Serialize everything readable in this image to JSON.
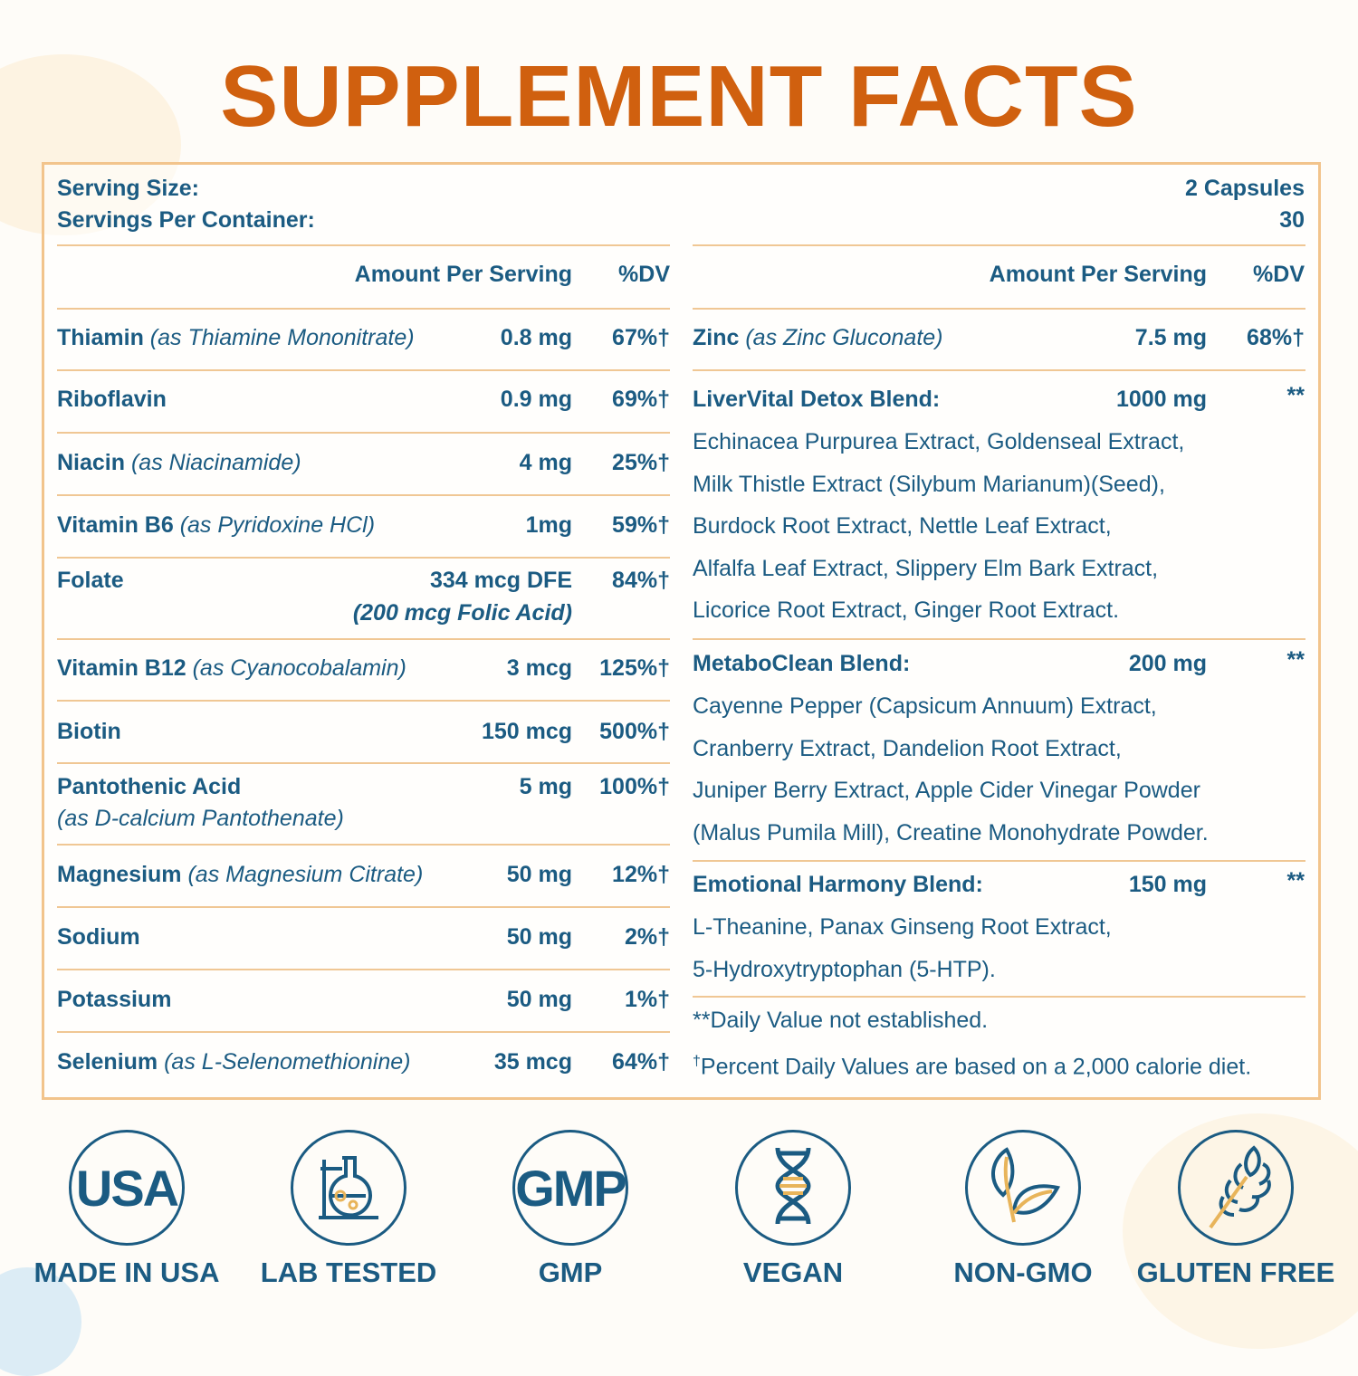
{
  "title": "SUPPLEMENT FACTS",
  "serving": {
    "size_label": "Serving Size:",
    "size_value": "2 Capsules",
    "per_container_label": "Servings Per Container:",
    "per_container_value": "30"
  },
  "headers": {
    "amount": "Amount Per Serving",
    "dv": "%DV"
  },
  "left_rows": [
    {
      "name": "Thiamin",
      "source": "(as Thiamine Mononitrate)",
      "amount": "0.8 mg",
      "dv": "67%†"
    },
    {
      "name": "Riboflavin",
      "source": "",
      "amount": "0.9 mg",
      "dv": "69%†"
    },
    {
      "name": "Niacin",
      "source": "(as Niacinamide)",
      "amount": "4 mg",
      "dv": "25%†"
    },
    {
      "name": "Vitamin B6",
      "source": "(as Pyridoxine HCl)",
      "amount": "1mg",
      "dv": "59%†"
    },
    {
      "name": "Folate",
      "source": "",
      "amount": "334 mcg DFE",
      "amount2": "(200 mcg Folic Acid)",
      "dv": "84%†"
    },
    {
      "name": "Vitamin B12",
      "source": "(as Cyanocobalamin)",
      "amount": "3 mcg",
      "dv": "125%†"
    },
    {
      "name": "Biotin",
      "source": "",
      "amount": "150 mcg",
      "dv": "500%†"
    },
    {
      "name": "Pantothenic Acid",
      "source2": "(as D-calcium Pantothenate)",
      "amount": "5 mg",
      "dv": "100%†"
    },
    {
      "name": "Magnesium",
      "source": "(as Magnesium Citrate)",
      "amount": "50 mg",
      "dv": "12%†"
    },
    {
      "name": "Sodium",
      "source": "",
      "amount": "50 mg",
      "dv": "2%†"
    },
    {
      "name": "Potassium",
      "source": "",
      "amount": "50 mg",
      "dv": "1%†"
    },
    {
      "name": "Selenium",
      "source": "(as L-Selenomethionine)",
      "amount": "35 mcg",
      "dv": "64%†"
    }
  ],
  "zinc": {
    "name": "Zinc",
    "source": "(as Zinc Gluconate)",
    "amount": "7.5 mg",
    "dv": "68%†"
  },
  "blends": [
    {
      "name": "LiverVital Detox Blend:",
      "amount": "1000 mg",
      "dv": "**",
      "lines": [
        "Echinacea Purpurea Extract, Goldenseal Extract,",
        "Milk Thistle Extract (Silybum Marianum)(Seed),",
        "Burdock Root Extract, Nettle Leaf Extract,",
        "Alfalfa Leaf Extract, Slippery Elm Bark Extract,",
        "Licorice Root Extract, Ginger Root Extract."
      ]
    },
    {
      "name": "MetaboClean Blend:",
      "amount": "200 mg",
      "dv": "**",
      "lines": [
        "Cayenne Pepper (Capsicum Annuum) Extract,",
        "Cranberry Extract, Dandelion Root Extract,",
        "Juniper Berry Extract, Apple Cider Vinegar Powder",
        "(Malus Pumila Mill), Creatine Monohydrate Powder."
      ]
    },
    {
      "name": "Emotional Harmony Blend:",
      "amount": "150 mg",
      "dv": "**",
      "lines": [
        "L-Theanine, Panax Ginseng Root Extract,",
        "5-Hydroxytryptophan (5-HTP)."
      ]
    }
  ],
  "footnotes": {
    "dv_not_established": "**Daily Value not established.",
    "dagger": "†",
    "percent_note": "Percent Daily Values are based on a 2,000 calorie diet."
  },
  "badges": [
    {
      "icon": "usa-text-icon",
      "icon_text": "USA",
      "label": "MADE IN USA"
    },
    {
      "icon": "lab-flask-icon",
      "label": "LAB TESTED"
    },
    {
      "icon": "gmp-text-icon",
      "icon_text": "GMP",
      "label": "GMP"
    },
    {
      "icon": "dna-icon",
      "label": "VEGAN"
    },
    {
      "icon": "leaf-icon",
      "label": "NON-GMO"
    },
    {
      "icon": "wheat-icon",
      "label": "GLUTEN FREE"
    }
  ],
  "colors": {
    "title": "#d0600f",
    "text": "#1b5b82",
    "border": "#f2c48c",
    "accent": "#e8b45a"
  }
}
